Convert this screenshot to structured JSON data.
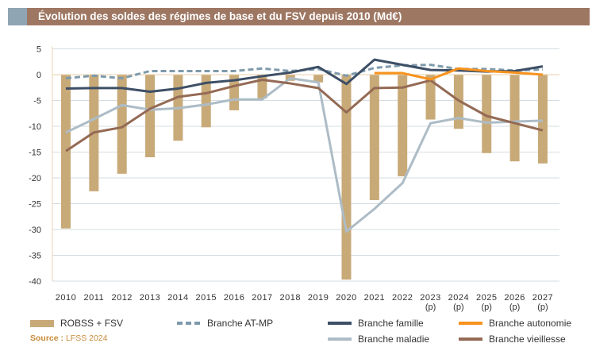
{
  "chart_data": {
    "type": "bar+line",
    "title": "Évolution des soldes des régimes de base et du FSV depuis 2010 (Md€)",
    "categories": [
      "2010",
      "2011",
      "2012",
      "2013",
      "2014",
      "2015",
      "2016",
      "2017",
      "2018",
      "2019",
      "2020",
      "2021",
      "2022",
      "2023",
      "2024",
      "2025",
      "2026",
      "2027"
    ],
    "category_sublabels": [
      "",
      "",
      "",
      "",
      "",
      "",
      "",
      "",
      "",
      "",
      "",
      "",
      "",
      "(p)",
      "(p)",
      "(p)",
      "(p)",
      "(p)"
    ],
    "ylim": [
      -40,
      5
    ],
    "yticks": [
      5,
      0,
      -5,
      -10,
      -15,
      -20,
      -25,
      -30,
      -35,
      -40
    ],
    "grid": true,
    "legend_position": "bottom",
    "series": [
      {
        "name": "ROBSS + FSV",
        "type": "bar",
        "color": "#c8aa78",
        "values": [
          -29.8,
          -22.6,
          -19.2,
          -16,
          -12.8,
          -10.2,
          -6.9,
          -4.6,
          -1.2,
          -1.5,
          -39.7,
          -24.3,
          -19.7,
          -8.7,
          -10.5,
          -15.2,
          -16.8,
          -17.2
        ]
      },
      {
        "name": "Branche AT-MP",
        "type": "line",
        "dashed": true,
        "color": "#7e9aab",
        "values": [
          -0.7,
          -0.2,
          -0.7,
          0.7,
          0.7,
          0.7,
          0.7,
          1.2,
          0.7,
          1.1,
          -0.2,
          1.3,
          1.8,
          1.9,
          1.1,
          1.1,
          0.8,
          1.0
        ]
      },
      {
        "name": "Branche famille",
        "type": "line",
        "color": "#3d4f66",
        "values": [
          -2.7,
          -2.6,
          -2.6,
          -3.3,
          -2.7,
          -1.6,
          -1.1,
          -0.3,
          0.4,
          1.5,
          -1.8,
          2.9,
          1.9,
          0.9,
          0.8,
          0.6,
          0.7,
          1.6
        ]
      },
      {
        "name": "Branche autonomie",
        "type": "line",
        "color": "#f7931e",
        "values": [
          null,
          null,
          null,
          null,
          null,
          null,
          null,
          null,
          null,
          null,
          null,
          0.3,
          0.3,
          -0.9,
          1.2,
          0.7,
          0.4,
          0.0
        ]
      },
      {
        "name": "Branche maladie",
        "type": "line",
        "color": "#adbcc6",
        "values": [
          -11.2,
          -8.6,
          -5.9,
          -6.8,
          -6.5,
          -5.8,
          -4.8,
          -4.8,
          -0.7,
          -1.5,
          -30.4,
          -26,
          -21,
          -9.4,
          -8.4,
          -9.3,
          -9.1,
          -8.9
        ]
      },
      {
        "name": "Branche vieillesse",
        "type": "line",
        "color": "#946a55",
        "values": [
          -14.8,
          -11.2,
          -10.2,
          -6.6,
          -4.3,
          -3.6,
          -2.2,
          -1.0,
          -1.7,
          -2.6,
          -7.3,
          -2.6,
          -2.5,
          -1.1,
          -5.0,
          -8.0,
          -9.4,
          -10.8
        ]
      }
    ]
  },
  "source": {
    "label": "Source :",
    "value": "LFSS 2024"
  }
}
